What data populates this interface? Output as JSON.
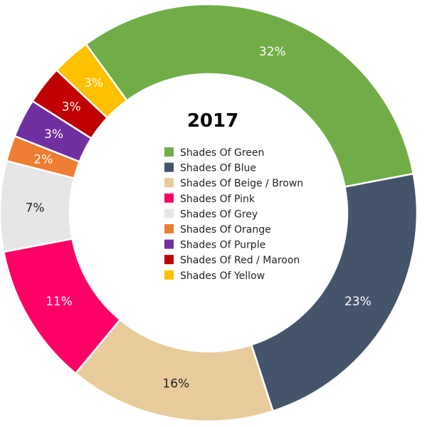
{
  "chart_data": {
    "type": "pie",
    "variant": "donut",
    "title": "2017",
    "legend_position": "center",
    "slices": [
      {
        "label": "Shades Of Green",
        "value": 32,
        "display": "32%",
        "color": "#70ad47",
        "text_color": "#ffffff"
      },
      {
        "label": "Shades Of Blue",
        "value": 23,
        "display": "23%",
        "color": "#44546a",
        "text_color": "#ffffff"
      },
      {
        "label": "Shades Of Beige / Brown",
        "value": 16,
        "display": "16%",
        "color": "#e8cc9b",
        "text_color": "#222222"
      },
      {
        "label": "Shades Of Pink",
        "value": 11,
        "display": "11%",
        "color": "#ff0066",
        "text_color": "#ffffff"
      },
      {
        "label": "Shades Of Grey",
        "value": 7,
        "display": "7%",
        "color": "#e7e6e6",
        "text_color": "#222222"
      },
      {
        "label": "Shades Of Orange",
        "value": 2,
        "display": "2%",
        "color": "#ed7d31",
        "text_color": "#ffffff"
      },
      {
        "label": "Shades Of Purple",
        "value": 3,
        "display": "3%",
        "color": "#7030a0",
        "text_color": "#ffffff"
      },
      {
        "label": "Shades Of Red / Maroon",
        "value": 3,
        "display": "3%",
        "color": "#c00000",
        "text_color": "#ffffff"
      },
      {
        "label": "Shades Of Yellow",
        "value": 3,
        "display": "3%",
        "color": "#ffc000",
        "text_color": "#ffffff"
      }
    ]
  }
}
